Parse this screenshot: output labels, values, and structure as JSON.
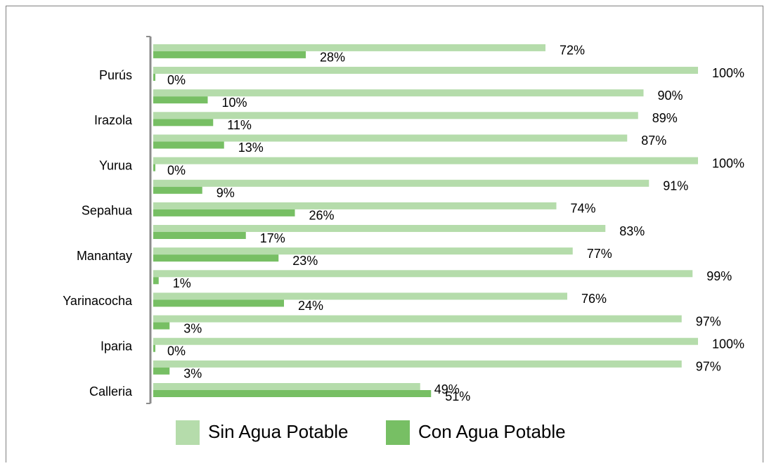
{
  "chart_data": {
    "type": "bar",
    "orientation": "horizontal",
    "categories": [
      "Calleria",
      null,
      "Iparia",
      null,
      "Yarinacocha",
      null,
      "Manantay",
      null,
      "Sepahua",
      null,
      "Yurua",
      null,
      "Irazola",
      null,
      "Purús",
      null
    ],
    "series": [
      {
        "name": "Sin Agua Potable",
        "color": "#b5dcab",
        "values": [
          49,
          97,
          100,
          97,
          76,
          99,
          77,
          83,
          74,
          91,
          100,
          87,
          89,
          90,
          100,
          72
        ],
        "value_labels": [
          "49%",
          "97%",
          "100%",
          "97%",
          "76%",
          "99%",
          "77%",
          "83%",
          "74%",
          "91%",
          "100%",
          "87%",
          "89%",
          "90%",
          "100%",
          "72%"
        ]
      },
      {
        "name": "Con Agua Potable",
        "color": "#77bf64",
        "values": [
          51,
          3,
          0,
          3,
          24,
          1,
          23,
          17,
          26,
          9,
          0,
          13,
          11,
          10,
          0,
          28
        ],
        "value_labels": [
          "51%",
          "3%",
          "0%",
          "3%",
          "24%",
          "1%",
          "23%",
          "17%",
          "26%",
          "9%",
          "0%",
          "13%",
          "11%",
          "10%",
          "0%",
          "28%"
        ]
      }
    ],
    "xlim": [
      0,
      100
    ],
    "legend": "bottom"
  }
}
